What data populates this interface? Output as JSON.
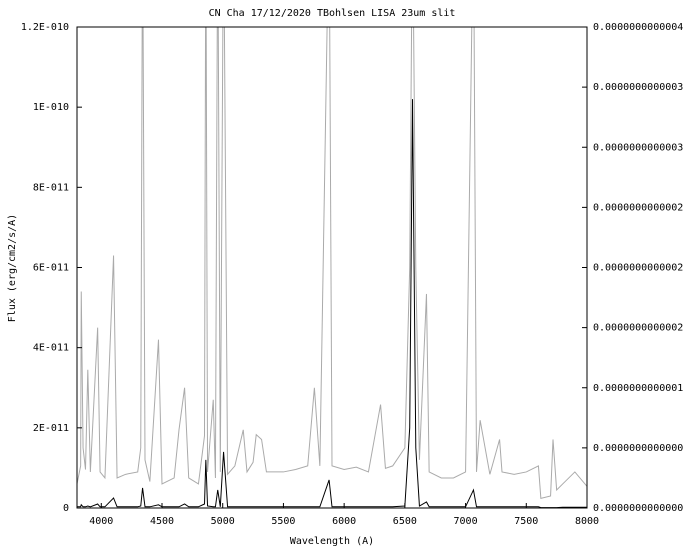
{
  "chart_data": {
    "type": "line",
    "title": "CN Cha 17/12/2020 TBohlsen LISA 23um slit",
    "xlabel": "Wavelength (A)",
    "ylabel": "Flux (erg/cm2/s/A)",
    "x": [
      3800,
      3830,
      3835,
      3850,
      3870,
      3889,
      3910,
      3970,
      3990,
      4030,
      4101,
      4130,
      4200,
      4300,
      4325,
      4340,
      4360,
      4400,
      4471,
      4500,
      4600,
      4640,
      4686,
      4720,
      4800,
      4850,
      4861,
      4875,
      4922,
      4940,
      4959,
      4980,
      5007,
      5040,
      5100,
      5169,
      5200,
      5250,
      5276,
      5320,
      5360,
      5500,
      5600,
      5700,
      5755,
      5800,
      5876,
      5900,
      6000,
      6100,
      6200,
      6300,
      6340,
      6400,
      6500,
      6540,
      6563,
      6590,
      6620,
      6678,
      6700,
      6800,
      6900,
      7000,
      7065,
      7090,
      7120,
      7200,
      7280,
      7300,
      7400,
      7500,
      7600,
      7620,
      7700,
      7720,
      7750,
      7800,
      7900,
      8000
    ],
    "series": [
      {
        "color": "#000000",
        "axis": "y",
        "values": [
          3e-13,
          3e-13,
          8e-13,
          3e-13,
          3e-13,
          5e-13,
          3e-13,
          1e-12,
          3e-13,
          3e-13,
          2.5e-12,
          3e-13,
          3e-13,
          3e-13,
          5e-13,
          5e-12,
          3e-13,
          3e-13,
          8e-13,
          3e-13,
          3e-13,
          3e-13,
          1e-12,
          3e-13,
          3e-13,
          1e-12,
          1.2e-11,
          5e-13,
          3e-13,
          3e-13,
          4.5e-12,
          3e-13,
          1.4e-11,
          3e-13,
          3e-13,
          3e-13,
          3e-13,
          3e-13,
          3e-13,
          3e-13,
          3e-13,
          3e-13,
          3e-13,
          3e-13,
          3e-13,
          3e-13,
          7e-12,
          3e-13,
          3e-13,
          3e-13,
          3e-13,
          3e-13,
          3e-13,
          3e-13,
          5e-13,
          2e-11,
          1.02e-10,
          1.5e-11,
          5e-13,
          1.5e-12,
          3e-13,
          3e-13,
          3e-13,
          3e-13,
          4.5e-12,
          3e-13,
          3e-13,
          3e-13,
          3e-13,
          3e-13,
          3e-13,
          3e-13,
          3e-13,
          1e-13,
          1e-13,
          1e-13,
          1e-13,
          2e-13,
          2e-13,
          2e-13
        ]
      },
      {
        "color": "#aaaaaa",
        "axis": "y2",
        "values": [
          2e-14,
          3.5e-14,
          1.8e-13,
          5e-14,
          3.2e-14,
          1.15e-13,
          3e-14,
          1.5e-13,
          3e-14,
          2.5e-14,
          2.1e-13,
          2.5e-14,
          2.8e-14,
          3e-14,
          5e-14,
          5e-13,
          4e-14,
          2.2e-14,
          1.4e-13,
          2e-14,
          2.5e-14,
          6.5e-14,
          1e-13,
          2.5e-14,
          2e-14,
          6e-14,
          5e-13,
          3e-14,
          9e-14,
          2.5e-14,
          5e-13,
          3e-14,
          5e-13,
          2.8e-14,
          3.5e-14,
          6.5e-14,
          3e-14,
          3.8e-14,
          6.1e-14,
          5.7e-14,
          3e-14,
          3e-14,
          3.2e-14,
          3.5e-14,
          1e-13,
          3.5e-14,
          5e-13,
          3.5e-14,
          3.2e-14,
          3.4e-14,
          3e-14,
          8.6e-14,
          3.3e-14,
          3.5e-14,
          5e-14,
          2e-13,
          5e-13,
          2e-13,
          4e-14,
          1.78e-13,
          3e-14,
          2.5e-14,
          2.5e-14,
          3e-14,
          5e-13,
          3e-14,
          7.3e-14,
          2.8e-14,
          5.7e-14,
          3e-14,
          2.8e-14,
          3e-14,
          3.5e-14,
          8e-15,
          1e-14,
          5.7e-14,
          1.5e-14,
          2e-14,
          3e-14,
          1.8e-14
        ]
      }
    ],
    "xlim": [
      3800,
      8000
    ],
    "xticks": [
      4000,
      4500,
      5000,
      5500,
      6000,
      6500,
      7000,
      7500,
      8000
    ],
    "ylim": [
      0,
      1.2e-10
    ],
    "yticks": [
      0,
      {
        "value": 2e-11,
        "label": "2E-011"
      },
      {
        "value": 4e-11,
        "label": "4E-011"
      },
      {
        "value": 6e-11,
        "label": "6E-011"
      },
      {
        "value": 8e-11,
        "label": "8E-011"
      },
      {
        "value": 1e-10,
        "label": "1E-010"
      },
      {
        "value": 1.2e-10,
        "label": "1.2E-010"
      }
    ],
    "y2lim": [
      0,
      4e-13
    ],
    "y2ticks": [
      {
        "value": 0,
        "label": "0.0000000000000"
      },
      {
        "value": 5e-14,
        "label": "0.0000000000000"
      },
      {
        "value": 1e-13,
        "label": "0.0000000000001"
      },
      {
        "value": 1.5e-13,
        "label": "0.0000000000002"
      },
      {
        "value": 2e-13,
        "label": "0.0000000000002"
      },
      {
        "value": 2.5e-13,
        "label": "0.0000000000002"
      },
      {
        "value": 3e-13,
        "label": "0.0000000000003"
      },
      {
        "value": 3.5e-13,
        "label": "0.0000000000003"
      },
      {
        "value": 4e-13,
        "label": "0.0000000000004"
      }
    ],
    "grid": false
  }
}
